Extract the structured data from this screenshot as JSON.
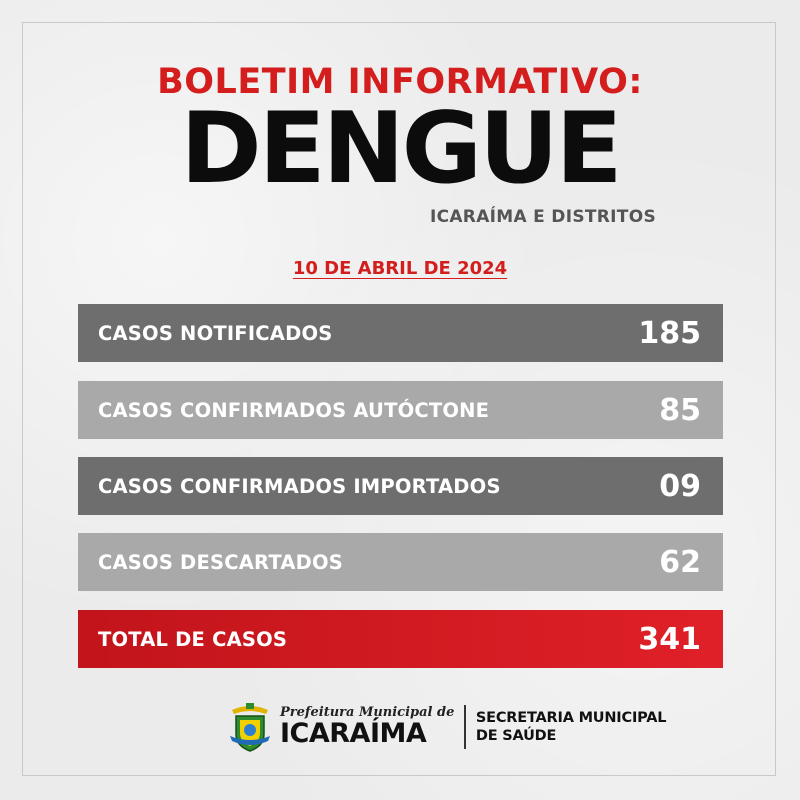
{
  "header": {
    "kicker": "BOLETIM INFORMATIVO:",
    "title": "DENGUE",
    "subtitle": "ICARAÍMA E DISTRITOS",
    "date": "10 DE ABRIL DE 2024"
  },
  "rows": [
    {
      "label": "CASOS NOTIFICADOS",
      "value": "185"
    },
    {
      "label": "CASOS CONFIRMADOS AUTÓCTONE",
      "value": "85"
    },
    {
      "label": "CASOS CONFIRMADOS IMPORTADOS",
      "value": "09"
    },
    {
      "label": "CASOS DESCARTADOS",
      "value": "62"
    },
    {
      "label": "TOTAL DE CASOS",
      "value": "341"
    }
  ],
  "footer": {
    "prefeitura_top": "Prefeitura Municipal de",
    "prefeitura_name": "ICARAÍMA",
    "secretaria_line1": "SECRETARIA MUNICIPAL",
    "secretaria_line2": "DE SAÚDE"
  },
  "colors": {
    "accent_red": "#d41e1e",
    "row_dark": "#6e6e6e",
    "row_light": "#a9a9a9",
    "row_total": "#c2141b"
  }
}
